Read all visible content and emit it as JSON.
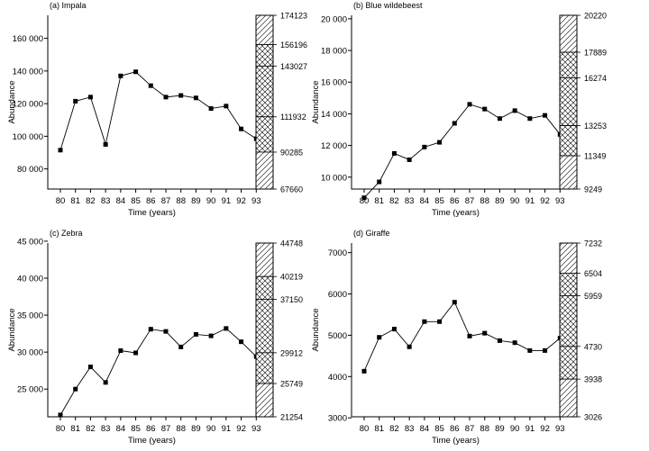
{
  "chart_data": [
    {
      "type": "line",
      "title": "(a) Impala",
      "xlabel": "Time (years)",
      "ylabel": "Abundance",
      "x": [
        "80",
        "81",
        "82",
        "83",
        "84",
        "85",
        "86",
        "87",
        "88",
        "89",
        "90",
        "91",
        "92",
        "93"
      ],
      "values": [
        91500,
        121500,
        124000,
        95000,
        137000,
        139500,
        131000,
        124000,
        125000,
        123500,
        117000,
        118500,
        104500,
        98500
      ],
      "ylim": [
        67660,
        174123
      ],
      "yticks": [
        80000,
        100000,
        120000,
        140000,
        160000
      ],
      "ytick_labels": [
        "80 000",
        "100 000",
        "120 000",
        "140 000",
        "160 000"
      ],
      "band_labels": [
        "174123",
        "156196",
        "143027",
        "111932",
        "90285",
        "67660"
      ]
    },
    {
      "type": "line",
      "title": "(b) Blue wildebeest",
      "xlabel": "Time (years)",
      "ylabel": "Abundance",
      "x": [
        "80",
        "81",
        "82",
        "83",
        "84",
        "85",
        "86",
        "87",
        "88",
        "89",
        "90",
        "91",
        "92",
        "93"
      ],
      "values": [
        8700,
        9700,
        11500,
        11100,
        11900,
        12200,
        13400,
        14600,
        14300,
        13700,
        14200,
        13700,
        13900,
        12700
      ],
      "ylim": [
        9249,
        20220
      ],
      "yticks": [
        10000,
        12000,
        14000,
        16000,
        18000,
        20000
      ],
      "ytick_labels": [
        "10 000",
        "12 000",
        "14 000",
        "16 000",
        "18 000",
        "20 000"
      ],
      "band_labels": [
        "20220",
        "17889",
        "16274",
        "13253",
        "11349",
        "9249"
      ]
    },
    {
      "type": "line",
      "title": "(c) Zebra",
      "xlabel": "Time (years)",
      "ylabel": "Abundance",
      "x": [
        "80",
        "81",
        "82",
        "83",
        "84",
        "85",
        "86",
        "87",
        "88",
        "89",
        "90",
        "91",
        "92",
        "93"
      ],
      "values": [
        21500,
        25000,
        28000,
        25900,
        30200,
        29900,
        33100,
        32800,
        30700,
        32400,
        32200,
        33200,
        31400,
        29400
      ],
      "ylim": [
        21254,
        44748
      ],
      "yticks": [
        25000,
        30000,
        35000,
        40000,
        45000
      ],
      "ytick_labels": [
        "25 000",
        "30 000",
        "35 000",
        "40 000",
        "45 000"
      ],
      "band_labels": [
        "44748",
        "40219",
        "37150",
        "29912",
        "25749",
        "21254"
      ]
    },
    {
      "type": "line",
      "title": "(d) Giraffe",
      "xlabel": "Time (years)",
      "ylabel": "Abundance",
      "x": [
        "80",
        "81",
        "82",
        "83",
        "84",
        "85",
        "86",
        "87",
        "88",
        "89",
        "90",
        "91",
        "92",
        "93"
      ],
      "values": [
        4130,
        4950,
        5150,
        4720,
        5330,
        5330,
        5800,
        4980,
        5050,
        4870,
        4820,
        4630,
        4630,
        4930
      ],
      "ylim": [
        3026,
        7232
      ],
      "yticks": [
        3000,
        4000,
        5000,
        6000,
        7000
      ],
      "ytick_labels": [
        "3000",
        "4000",
        "5000",
        "6000",
        "7000"
      ],
      "band_labels": [
        "7232",
        "6504",
        "5959",
        "4730",
        "3938",
        "3026"
      ]
    }
  ]
}
